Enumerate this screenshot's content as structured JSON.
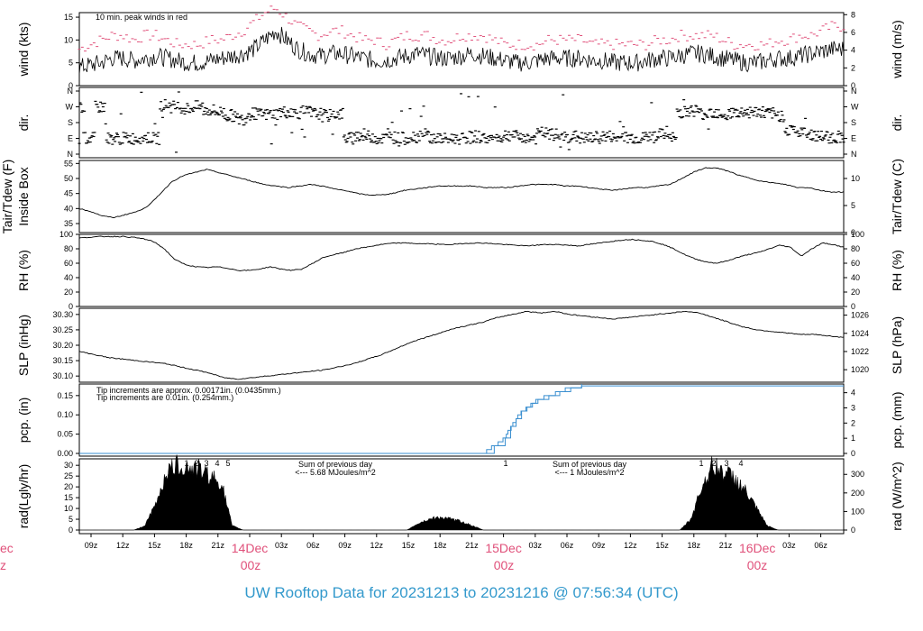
{
  "footer": {
    "prefix": "UW Rooftop Data for",
    "start": "20231213",
    "to": "to",
    "end": "20231216",
    "at": "@",
    "time": "07:56:34",
    "tz": "(UTC)"
  },
  "colors": {
    "peak": "#e0507a",
    "blue": "#3a8fd0",
    "purple": "#a020f0",
    "day_label": "#e0507a",
    "footer": "#3399cc"
  },
  "chart_data": [
    {
      "id": "wind",
      "type": "line",
      "ylabel_left": "wind (kts)",
      "ylabel_right": "wind (m/s)",
      "ylim": [
        0,
        16
      ],
      "yticks_left": [
        0,
        5,
        10,
        15
      ],
      "yticks_right": [
        0,
        2,
        4,
        6,
        8
      ],
      "right_scale": 0.5144,
      "annotation": "10 min. peak winds in red",
      "series": [
        {
          "values": [
            4,
            4.5,
            5,
            6,
            6,
            5.5,
            6,
            6.5,
            6,
            5.5,
            5,
            5,
            5.5,
            6,
            6.5,
            7,
            8,
            10,
            12,
            10,
            8,
            7,
            6.5,
            7,
            7,
            6.5,
            6,
            5.5,
            5.5,
            6,
            6.5,
            7,
            6.5,
            6,
            6,
            6.5,
            7,
            6.5,
            6,
            5.5,
            5,
            5,
            5.5,
            6,
            6,
            6,
            6,
            5.5,
            5.5,
            5,
            5,
            5,
            5.5,
            6,
            6,
            6.5,
            7,
            7,
            6.5,
            6,
            5.5,
            5,
            5,
            5.5,
            6,
            6,
            6.5,
            7,
            7.5,
            8,
            8
          ]
        },
        {
          "values": [
            8,
            9,
            10,
            11,
            11,
            10,
            11,
            11,
            10,
            9,
            9,
            9,
            10,
            10,
            11,
            12,
            14,
            16,
            17,
            15,
            13,
            12,
            11,
            12,
            12,
            11,
            10,
            10,
            9,
            10,
            11,
            11,
            11,
            10,
            10,
            11,
            11,
            11,
            10,
            9,
            9,
            9,
            9,
            10,
            10,
            10,
            10,
            9,
            9,
            9,
            9,
            9,
            9,
            10,
            10,
            11,
            11,
            11,
            11,
            10,
            9,
            9,
            9,
            9,
            10,
            10,
            11,
            11,
            12,
            13,
            13
          ]
        }
      ]
    },
    {
      "id": "dir",
      "type": "scatter",
      "ylabel_left": "dir.",
      "ylabel_right": "dir.",
      "yticks_left": [
        "N",
        "E",
        "S",
        "W",
        "N"
      ],
      "yticks_right": [
        "N",
        "E",
        "S",
        "W",
        "N"
      ],
      "values": [
        270,
        90,
        270,
        90,
        90,
        90,
        95,
        90,
        280,
        270,
        260,
        270,
        250,
        240,
        220,
        200,
        230,
        225,
        230,
        240,
        235,
        240,
        230,
        220,
        230,
        90,
        110,
        100,
        90,
        95,
        90,
        100,
        110,
        90,
        85,
        90,
        95,
        100,
        90,
        95,
        110,
        100,
        90,
        120,
        110,
        95,
        100,
        90,
        95,
        100,
        90,
        95,
        90,
        100,
        110,
        90,
        240,
        250,
        230,
        240,
        230,
        235,
        240,
        240,
        230,
        220,
        140,
        120,
        110,
        100,
        95,
        100
      ]
    },
    {
      "id": "temp",
      "type": "line",
      "ylabel_left": "Tair/Tdew (F)",
      "ylabel_left2": "Inside Box",
      "ylabel_right": "Tair/Tdew (C)",
      "ylim_left": [
        32,
        56
      ],
      "yticks_left": [
        35,
        40,
        45,
        50,
        55
      ],
      "yticks_right": [
        0,
        5,
        10
      ],
      "values": [
        40,
        39,
        37.5,
        37,
        38,
        39,
        41,
        45,
        49,
        51,
        52,
        53,
        52,
        51,
        50,
        49,
        48,
        47.5,
        47,
        47.5,
        48,
        47.5,
        46.5,
        46,
        45,
        44.5,
        44.5,
        45,
        46,
        46.5,
        47,
        47.5,
        47.5,
        47.5,
        47.5,
        47,
        47,
        47,
        47.5,
        48,
        48,
        48,
        47.5,
        47.5,
        47,
        46.5,
        46,
        46.5,
        47,
        47,
        47.5,
        48,
        50,
        52,
        53.5,
        53.5,
        52.5,
        51,
        50,
        49,
        48.5,
        48,
        47,
        47,
        46,
        45.5,
        45.5
      ]
    },
    {
      "id": "rh",
      "type": "line",
      "ylabel_left": "RH (%)",
      "ylabel_right": "RH (%)",
      "ylim": [
        0,
        100
      ],
      "yticks_left": [
        0,
        20,
        40,
        60,
        80,
        100
      ],
      "yticks_right": [
        0,
        20,
        40,
        60,
        80,
        100
      ],
      "values": [
        95,
        96,
        97,
        97,
        97,
        96,
        94,
        90,
        80,
        65,
        58,
        55,
        54,
        55,
        53,
        50,
        50,
        52,
        55,
        52,
        50,
        52,
        60,
        68,
        72,
        75,
        80,
        82,
        85,
        87,
        88,
        88,
        87,
        87,
        86,
        86,
        87,
        88,
        88,
        87,
        86,
        85,
        84,
        85,
        86,
        86,
        85,
        84,
        86,
        88,
        90,
        92,
        93,
        92,
        90,
        86,
        80,
        72,
        66,
        62,
        60,
        63,
        68,
        72,
        75,
        80,
        85,
        82,
        70,
        80,
        88,
        86,
        82
      ]
    },
    {
      "id": "slp",
      "type": "line",
      "ylabel_left": "SLP (inHg)",
      "ylabel_right": "SLP (hPa)",
      "ylim": [
        30.08,
        30.32
      ],
      "yticks_left": [
        "30.10",
        "30.15",
        "30.20",
        "30.25",
        "30.30"
      ],
      "yticks_right": [
        "1020",
        "1022",
        "1024",
        "1026"
      ],
      "values": [
        30.18,
        30.17,
        30.16,
        30.155,
        30.15,
        30.145,
        30.14,
        30.13,
        30.12,
        30.11,
        30.095,
        30.09,
        30.095,
        30.1,
        30.105,
        30.11,
        30.115,
        30.12,
        30.13,
        30.14,
        30.155,
        30.17,
        30.19,
        30.21,
        30.225,
        30.24,
        30.255,
        30.265,
        30.275,
        30.29,
        30.3,
        30.31,
        30.305,
        30.31,
        30.3,
        30.295,
        30.29,
        30.285,
        30.29,
        30.295,
        30.3,
        30.305,
        30.31,
        30.305,
        30.29,
        30.275,
        30.26,
        30.25,
        30.245,
        30.24,
        30.235,
        30.235,
        30.23,
        30.225
      ]
    },
    {
      "id": "pcp",
      "type": "line",
      "ylabel_left": "pcp. (in)",
      "ylabel_right": "pcp. (mm)",
      "ylim": [
        0,
        0.18
      ],
      "yticks_left": [
        "0.00",
        "0.05",
        "0.10",
        "0.15"
      ],
      "yticks_right": [
        "0",
        "1",
        "2",
        "3",
        "4"
      ],
      "notes": [
        "Tip increments are approx. 0.00171in. (0.0435mm.)",
        "Tip increments are 0.01in. (0.254mm.)"
      ],
      "x": [
        0,
        37,
        38,
        39,
        39.5,
        40,
        40.5,
        41,
        41.5,
        42,
        43,
        44,
        45,
        46,
        70
      ],
      "values": [
        0,
        0,
        0.02,
        0.04,
        0.07,
        0.09,
        0.11,
        0.12,
        0.13,
        0.14,
        0.15,
        0.16,
        0.17,
        0.175,
        0.175
      ]
    },
    {
      "id": "rad",
      "type": "area",
      "ylabel_left": "rad(Lgly/hr)",
      "ylabel_right": "rad (W/m^2)",
      "ylim": [
        0,
        33
      ],
      "yticks_left": [
        0,
        5,
        10,
        15,
        20,
        25,
        30
      ],
      "yticks_right": [
        0,
        100,
        200,
        300
      ],
      "annotations": [
        {
          "text": "Sum of previous day"
        },
        {
          "text": "<--- 5.68 MJoules/m^2"
        },
        {
          "text": "Sum of previous day"
        },
        {
          "text": "<--- 1 MJoules/m^2"
        }
      ],
      "markers": [
        "1",
        "2",
        "3",
        "4",
        "5",
        "1",
        "1",
        "2",
        "3",
        "4"
      ],
      "values": [
        0,
        0,
        0,
        0,
        0,
        0,
        2,
        12,
        27,
        30,
        29,
        28,
        25,
        22,
        2,
        0,
        0,
        0,
        0,
        0,
        0,
        0,
        0,
        0,
        0,
        0,
        0,
        0,
        0,
        0,
        0,
        3,
        5,
        6,
        5,
        4,
        2,
        0,
        0,
        0,
        0,
        0,
        0,
        0,
        0,
        0,
        0,
        0,
        0,
        0,
        0,
        0,
        0,
        0,
        0,
        0,
        5,
        20,
        30,
        27,
        24,
        18,
        10,
        2,
        0,
        0,
        0,
        0,
        0,
        0,
        0
      ]
    },
    {
      "id": "xaxis",
      "type": "axis",
      "tick_labels": [
        "09z",
        "12z",
        "15z",
        "18z",
        "21z",
        "14Dec",
        "03z",
        "06z",
        "09z",
        "12z",
        "15z",
        "18z",
        "21z",
        "15Dec",
        "03z",
        "06z",
        "09z",
        "12z",
        "15z",
        "18z",
        "21z",
        "16Dec",
        "03z",
        "06z"
      ],
      "day_labels": [
        {
          "date": "ec",
          "hour": "z"
        },
        {
          "date": "14Dec",
          "hour": "00z"
        },
        {
          "date": "15Dec",
          "hour": "00z"
        },
        {
          "date": "16Dec",
          "hour": "00z"
        }
      ]
    }
  ]
}
